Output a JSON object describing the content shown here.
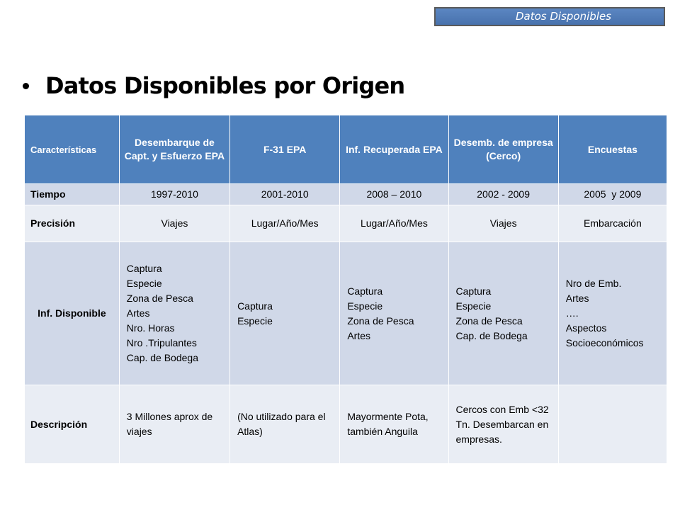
{
  "tag": "Datos Disponibles",
  "heading": "Datos Disponibles por Origen",
  "table": {
    "headers": [
      "Características",
      "Desembarque de Capt. y Esfuerzo EPA",
      "F-31 EPA",
      "Inf. Recuperada EPA",
      "Desemb. de empresa (Cerco)",
      "Encuestas"
    ],
    "rows": [
      {
        "label": "Tiempo",
        "cells": [
          "1997-2010",
          "2001-2010",
          "2008 – 2010",
          "2002 - 2009",
          "2005  y 2009"
        ]
      },
      {
        "label": "Precisión",
        "cells": [
          "Viajes",
          "Lugar/Año/Mes",
          "Lugar/Año/Mes",
          "Viajes",
          "Embarcación"
        ]
      },
      {
        "label": "Inf. Disponible",
        "cells": [
          "Captura\nEspecie\nZona de Pesca\nArtes\nNro. Horas\nNro .Tripulantes\nCap. de  Bodega",
          "Captura\nEspecie",
          "Captura\nEspecie\nZona de Pesca\nArtes",
          "Captura\nEspecie\nZona de Pesca\nCap. de  Bodega",
          "Nro de Emb.\nArtes\n….\nAspectos Socioeconómicos"
        ]
      },
      {
        "label": "Descripción",
        "cells": [
          "3 Millones aprox de viajes",
          "(No utilizado para el Atlas)",
          "Mayormente Pota, también Anguila",
          "Cercos  con Emb <32 Tn. Desembarcan en empresas.",
          ""
        ]
      }
    ]
  }
}
